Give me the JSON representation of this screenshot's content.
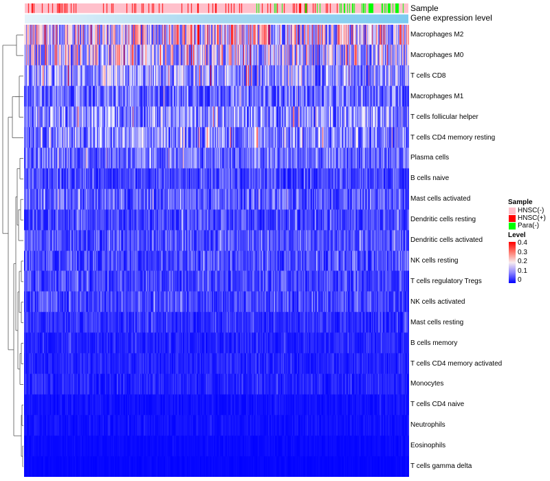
{
  "annotation_labels": [
    "Sample",
    "Gene expression level"
  ],
  "legend": {
    "sample_title": "Sample",
    "sample_items": [
      {
        "label": "HNSC(-)",
        "color": "#ffc0cb"
      },
      {
        "label": "HNSC(+)",
        "color": "#ff0000"
      },
      {
        "label": "Para(-)",
        "color": "#00ff00"
      }
    ],
    "level_title": "Level",
    "level_ticks": [
      "0.4",
      "0.3",
      "0.2",
      "0.1",
      "0"
    ],
    "level_colors": {
      "low": "#0000ff",
      "mid": "#ffffff",
      "high": "#ff0000"
    }
  },
  "chart_data": {
    "type": "heatmap",
    "title": "",
    "column_annotations": [
      {
        "name": "Sample",
        "categories": [
          "HNSC(-)",
          "HNSC(+)",
          "Para(-)"
        ],
        "note": "mostly HNSC(-) with scattered HNSC(+) columns and Para(-) columns concentrated toward the right"
      },
      {
        "name": "Gene expression level",
        "note": "continuous bar, light blue increasing to sky blue from left to right"
      }
    ],
    "value_range": [
      0,
      0.4
    ],
    "sample_count_approx": 550,
    "rows": [
      {
        "name": "Macrophages M2",
        "mean_level": 0.2
      },
      {
        "name": "Macrophages M0",
        "mean_level": 0.17
      },
      {
        "name": "T cells CD8",
        "mean_level": 0.13
      },
      {
        "name": "Macrophages M1",
        "mean_level": 0.09
      },
      {
        "name": "T cells follicular helper",
        "mean_level": 0.12
      },
      {
        "name": "T cells CD4 memory resting",
        "mean_level": 0.12
      },
      {
        "name": "Plasma cells",
        "mean_level": 0.09
      },
      {
        "name": "B cells naive",
        "mean_level": 0.06
      },
      {
        "name": "Mast cells activated",
        "mean_level": 0.08
      },
      {
        "name": "Dendritic cells resting",
        "mean_level": 0.06
      },
      {
        "name": "Dendritic cells activated",
        "mean_level": 0.07
      },
      {
        "name": "NK cells resting",
        "mean_level": 0.06
      },
      {
        "name": "T cells regulatory  Tregs",
        "mean_level": 0.06
      },
      {
        "name": "NK cells activated",
        "mean_level": 0.06
      },
      {
        "name": "Mast cells resting",
        "mean_level": 0.04
      },
      {
        "name": "B cells memory",
        "mean_level": 0.03
      },
      {
        "name": "T cells CD4 memory activated",
        "mean_level": 0.03
      },
      {
        "name": "Monocytes",
        "mean_level": 0.03
      },
      {
        "name": "T cells CD4 naive",
        "mean_level": 0.015
      },
      {
        "name": "Neutrophils",
        "mean_level": 0.015
      },
      {
        "name": "Eosinophils",
        "mean_level": 0.008
      },
      {
        "name": "T cells gamma delta",
        "mean_level": 0.005
      }
    ],
    "row_dendrogram": true,
    "xlabel": "",
    "ylabel": ""
  }
}
